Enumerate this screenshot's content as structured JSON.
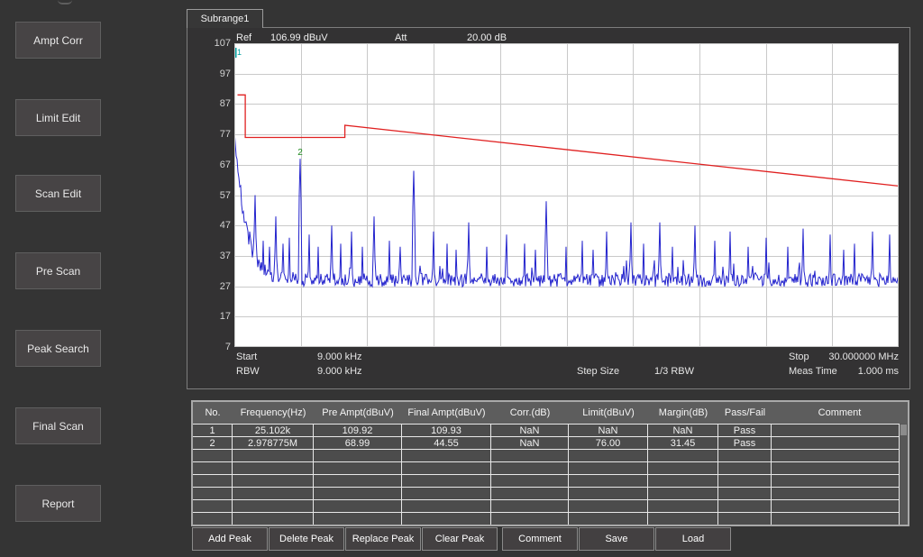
{
  "sidebar": {
    "buttons": [
      "Ampt Corr",
      "Limit Edit",
      "Scan Edit",
      "Pre Scan",
      "Peak Search",
      "Final Scan",
      "Report"
    ]
  },
  "tab": {
    "label": "Subrange1"
  },
  "chart": {
    "header": {
      "ref_label": "Ref",
      "ref_value": "106.99 dBuV",
      "att_label": "Att",
      "att_value": "20.00 dB"
    },
    "footer": {
      "start_label": "Start",
      "start_value": "9.000 kHz",
      "stop_label": "Stop",
      "stop_value": "30.000000 MHz",
      "rbw_label": "RBW",
      "rbw_value": "9.000 kHz",
      "step_label": "Step Size",
      "step_value": "1/3 RBW",
      "meas_label": "Meas Time",
      "meas_value": "1.000 ms"
    },
    "chart_data": {
      "type": "line",
      "title": "",
      "ylabel": "dBuV",
      "y_axis": {
        "min": 7,
        "max": 107,
        "step": 10
      },
      "x_axis": {
        "start_mhz": 0.009,
        "stop_mhz": 30,
        "divisions": 10
      },
      "grid": true,
      "plot_bg": "#ffffff",
      "grid_color": "#c9c9c9",
      "trace_color": "#2323cd",
      "limit_color": "#e02020",
      "limit_line_mhz_dbuv": [
        [
          0.15,
          90
        ],
        [
          0.5,
          90
        ],
        [
          0.5,
          76
        ],
        [
          5,
          76
        ],
        [
          5,
          80
        ],
        [
          30,
          60
        ]
      ],
      "markers": [
        {
          "label": "1",
          "freq_mhz": 0.025102,
          "amp_dbuv": 109.92,
          "color": "#00a0a0"
        },
        {
          "label": "2",
          "freq_mhz": 2.978775,
          "amp_dbuv": 68.99,
          "color": "#1e8a1e"
        }
      ],
      "baseline": {
        "floor_dbuv": 29,
        "decay_amp_db": 50,
        "decay_tau_mhz": 0.5,
        "noise_db": 2.2
      },
      "spikes_mhz_dbuv": [
        [
          0.5,
          48
        ],
        [
          0.7,
          45
        ],
        [
          0.95,
          57
        ],
        [
          1.3,
          42
        ],
        [
          1.6,
          40
        ],
        [
          1.9,
          50
        ],
        [
          2.2,
          41
        ],
        [
          2.5,
          43
        ],
        [
          2.978775,
          69
        ],
        [
          3.4,
          44
        ],
        [
          3.8,
          40
        ],
        [
          4.4,
          47
        ],
        [
          4.8,
          41
        ],
        [
          5.3,
          45
        ],
        [
          5.8,
          40
        ],
        [
          6.3,
          50
        ],
        [
          7.0,
          42
        ],
        [
          7.5,
          40
        ],
        [
          8.1,
          65
        ],
        [
          9.0,
          45
        ],
        [
          9.6,
          41
        ],
        [
          10.0,
          39
        ],
        [
          10.6,
          48
        ],
        [
          11.4,
          40
        ],
        [
          12.3,
          44
        ],
        [
          13.1,
          41
        ],
        [
          13.6,
          39
        ],
        [
          14.1,
          55
        ],
        [
          15.0,
          40
        ],
        [
          15.7,
          42
        ],
        [
          16.2,
          39
        ],
        [
          16.8,
          45
        ],
        [
          17.9,
          48
        ],
        [
          18.5,
          41
        ],
        [
          19.2,
          48
        ],
        [
          19.8,
          40
        ],
        [
          20.8,
          47
        ],
        [
          21.7,
          42
        ],
        [
          22.4,
          45
        ],
        [
          23.2,
          40
        ],
        [
          24.0,
          43
        ],
        [
          25.0,
          40
        ],
        [
          25.7,
          46
        ],
        [
          26.9,
          44
        ],
        [
          27.5,
          39
        ],
        [
          28.0,
          41
        ],
        [
          28.8,
          45
        ],
        [
          29.6,
          44
        ]
      ]
    }
  },
  "table": {
    "headers": [
      "No.",
      "Frequency(Hz)",
      "Pre Ampt(dBuV)",
      "Final Ampt(dBuV)",
      "Corr.(dB)",
      "Limit(dBuV)",
      "Margin(dB)",
      "Pass/Fail",
      "Comment"
    ],
    "rows": [
      [
        "1",
        "25.102k",
        "109.92",
        "109.93",
        "NaN",
        "NaN",
        "NaN",
        "Pass",
        ""
      ],
      [
        "2",
        "2.978775M",
        "68.99",
        "44.55",
        "NaN",
        "76.00",
        "31.45",
        "Pass",
        ""
      ],
      [
        "",
        "",
        "",
        "",
        "",
        "",
        "",
        "",
        ""
      ],
      [
        "",
        "",
        "",
        "",
        "",
        "",
        "",
        "",
        ""
      ],
      [
        "",
        "",
        "",
        "",
        "",
        "",
        "",
        "",
        ""
      ],
      [
        "",
        "",
        "",
        "",
        "",
        "",
        "",
        "",
        ""
      ],
      [
        "",
        "",
        "",
        "",
        "",
        "",
        "",
        "",
        ""
      ],
      [
        "",
        "",
        "",
        "",
        "",
        "",
        "",
        "",
        ""
      ]
    ]
  },
  "actions": {
    "buttons": [
      "Add Peak",
      "Delete Peak",
      "Replace Peak",
      "Clear Peak",
      "Comment",
      "Save",
      "Load"
    ]
  }
}
